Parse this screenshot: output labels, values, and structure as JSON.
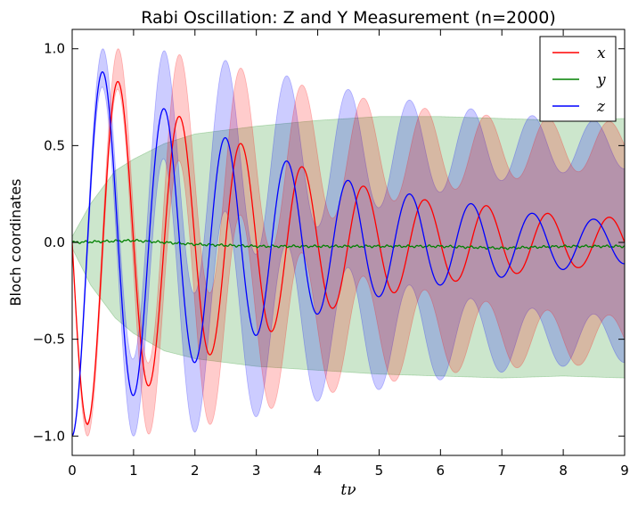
{
  "chart_data": {
    "type": "line",
    "title": "Rabi Oscillation: Z and Y Measurement (n=2000)",
    "xlabel": "tν",
    "ylabel": "Bloch coordinates",
    "xlim": [
      0,
      9
    ],
    "ylim": [
      -1.1,
      1.1
    ],
    "xticks": [
      "0",
      "1",
      "2",
      "3",
      "4",
      "5",
      "6",
      "7",
      "8",
      "9"
    ],
    "yticks": [
      "1.0",
      "0.5",
      "0.0",
      "−0.5",
      "−1.0"
    ],
    "grid": false,
    "legend_position": "top-right",
    "series": [
      {
        "name": "x",
        "color": "#ff0000",
        "band_color": "#ff0000",
        "curve": {
          "form": "-A*sin(2*pi*t)",
          "amplitude_points": [
            [
              0.25,
              0.94
            ],
            [
              0.75,
              0.83
            ],
            [
              1.25,
              0.74
            ],
            [
              1.75,
              0.65
            ],
            [
              2.25,
              0.58
            ],
            [
              2.75,
              0.51
            ],
            [
              3.25,
              0.46
            ],
            [
              3.75,
              0.39
            ],
            [
              4.25,
              0.34
            ],
            [
              4.75,
              0.29
            ],
            [
              5.25,
              0.26
            ],
            [
              5.75,
              0.22
            ],
            [
              6.25,
              0.2
            ],
            [
              6.75,
              0.19
            ],
            [
              7.25,
              0.16
            ],
            [
              7.75,
              0.15
            ],
            [
              8.25,
              0.13
            ],
            [
              8.75,
              0.13
            ]
          ]
        },
        "band_outer_points": [
          [
            0.0,
            1.0
          ],
          [
            1.0,
            1.0
          ],
          [
            2.0,
            0.96
          ],
          [
            3.0,
            0.88
          ],
          [
            4.0,
            0.79
          ],
          [
            5.0,
            0.73
          ],
          [
            6.0,
            0.68
          ],
          [
            7.0,
            0.65
          ],
          [
            8.0,
            0.64
          ],
          [
            9.0,
            0.62
          ]
        ],
        "band_inner_points": [
          [
            0.0,
            1.0
          ],
          [
            1.0,
            0.72
          ],
          [
            2.0,
            0.32
          ],
          [
            3.0,
            0.08
          ],
          [
            4.0,
            -0.1
          ],
          [
            5.0,
            -0.2
          ],
          [
            6.0,
            -0.26
          ],
          [
            7.0,
            -0.32
          ],
          [
            8.0,
            -0.36
          ],
          [
            9.0,
            -0.38
          ]
        ]
      },
      {
        "name": "y",
        "color": "#008000",
        "band_color": "#008000",
        "curve": {
          "form": "small drift",
          "points": [
            [
              0.0,
              0.0
            ],
            [
              1.0,
              0.01
            ],
            [
              2.0,
              -0.01
            ],
            [
              3.0,
              -0.02
            ],
            [
              4.0,
              -0.02
            ],
            [
              5.0,
              -0.02
            ],
            [
              6.0,
              -0.02
            ],
            [
              7.0,
              -0.03
            ],
            [
              8.0,
              -0.02
            ],
            [
              9.0,
              -0.02
            ]
          ]
        },
        "band_upper_points": [
          [
            0.0,
            0.03
          ],
          [
            0.3,
            0.2
          ],
          [
            0.7,
            0.37
          ],
          [
            1.0,
            0.43
          ],
          [
            1.5,
            0.51
          ],
          [
            2.0,
            0.56
          ],
          [
            3.0,
            0.6
          ],
          [
            4.0,
            0.63
          ],
          [
            5.0,
            0.65
          ],
          [
            6.0,
            0.65
          ],
          [
            7.0,
            0.64
          ],
          [
            8.0,
            0.63
          ],
          [
            9.0,
            0.64
          ]
        ],
        "band_lower_points": [
          [
            0.0,
            -0.03
          ],
          [
            0.3,
            -0.22
          ],
          [
            0.7,
            -0.39
          ],
          [
            1.0,
            -0.47
          ],
          [
            1.5,
            -0.56
          ],
          [
            2.0,
            -0.6
          ],
          [
            3.0,
            -0.64
          ],
          [
            4.0,
            -0.66
          ],
          [
            5.0,
            -0.68
          ],
          [
            6.0,
            -0.69
          ],
          [
            7.0,
            -0.7
          ],
          [
            8.0,
            -0.69
          ],
          [
            9.0,
            -0.7
          ]
        ]
      },
      {
        "name": "z",
        "color": "#0000ff",
        "band_color": "#0000ff",
        "curve": {
          "form": "-A*cos(2*pi*t)",
          "amplitude_points": [
            [
              0.0,
              1.0
            ],
            [
              0.5,
              0.88
            ],
            [
              1.0,
              0.79
            ],
            [
              1.5,
              0.69
            ],
            [
              2.0,
              0.62
            ],
            [
              2.5,
              0.54
            ],
            [
              3.0,
              0.48
            ],
            [
              3.5,
              0.42
            ],
            [
              4.0,
              0.37
            ],
            [
              4.5,
              0.32
            ],
            [
              5.0,
              0.28
            ],
            [
              5.5,
              0.25
            ],
            [
              6.0,
              0.22
            ],
            [
              6.5,
              0.2
            ],
            [
              7.0,
              0.18
            ],
            [
              7.5,
              0.15
            ],
            [
              8.0,
              0.14
            ],
            [
              8.5,
              0.12
            ],
            [
              9.0,
              0.11
            ]
          ]
        },
        "band_outer_points": [
          [
            0.0,
            1.0
          ],
          [
            1.0,
            1.0
          ],
          [
            2.0,
            0.98
          ],
          [
            3.0,
            0.9
          ],
          [
            4.0,
            0.82
          ],
          [
            5.0,
            0.76
          ],
          [
            6.0,
            0.71
          ],
          [
            7.0,
            0.67
          ],
          [
            8.0,
            0.64
          ],
          [
            9.0,
            0.62
          ]
        ],
        "band_inner_points": [
          [
            0.0,
            1.0
          ],
          [
            1.0,
            0.6
          ],
          [
            2.0,
            0.26
          ],
          [
            3.0,
            0.06
          ],
          [
            4.0,
            -0.08
          ],
          [
            5.0,
            -0.18
          ],
          [
            6.0,
            -0.26
          ],
          [
            7.0,
            -0.32
          ],
          [
            8.0,
            -0.36
          ],
          [
            9.0,
            -0.38
          ]
        ]
      }
    ]
  }
}
